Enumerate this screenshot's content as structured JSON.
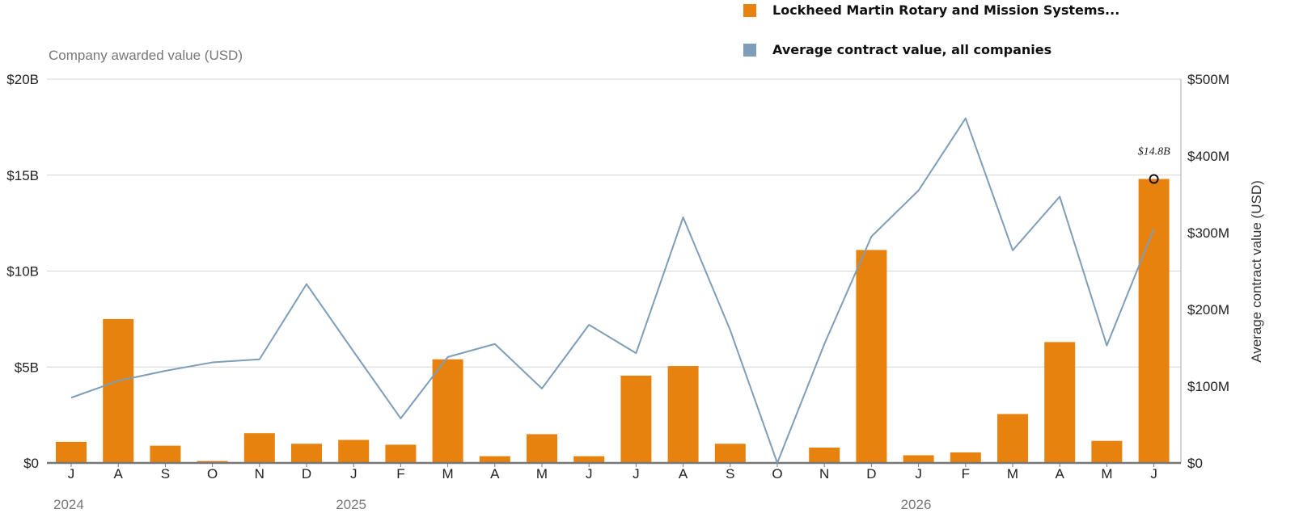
{
  "chart_data": {
    "type": "bar",
    "categories": [
      "J",
      "A",
      "S",
      "O",
      "N",
      "D",
      "J",
      "F",
      "M",
      "A",
      "M",
      "J",
      "J",
      "A",
      "S",
      "O",
      "N",
      "D",
      "J",
      "F",
      "M",
      "A",
      "M",
      "J"
    ],
    "years": [
      {
        "label": "2024",
        "index": 0
      },
      {
        "label": "2025",
        "index": 6
      },
      {
        "label": "2026",
        "index": 18
      }
    ],
    "series": [
      {
        "name": "Lockheed Martin Rotary and Mission Systems...",
        "type": "bar",
        "axis": "left",
        "color": "#E8820E",
        "values": [
          1.1,
          7.5,
          0.9,
          0.1,
          1.55,
          1.0,
          1.2,
          0.95,
          5.4,
          0.35,
          1.5,
          0.35,
          4.55,
          5.05,
          1.0,
          0.0,
          0.8,
          11.1,
          0.4,
          0.55,
          2.55,
          6.3,
          1.15,
          14.8
        ]
      },
      {
        "name": "Average contract value, all companies",
        "type": "line",
        "axis": "right",
        "color": "#7E9DB8",
        "values": [
          85,
          107,
          120,
          131,
          135,
          233,
          145,
          58,
          138,
          155,
          97,
          180,
          143,
          320,
          173,
          0,
          155,
          295,
          355,
          449,
          277,
          347,
          153,
          305
        ]
      }
    ],
    "y_left": {
      "label": "Company awarded value (USD)",
      "range": [
        0,
        20
      ],
      "unit": "billions",
      "ticks": [
        {
          "value": 0,
          "label": "$0"
        },
        {
          "value": 5,
          "label": "$5B"
        },
        {
          "value": 10,
          "label": "$10B"
        },
        {
          "value": 15,
          "label": "$15B"
        },
        {
          "value": 20,
          "label": "$20B"
        }
      ]
    },
    "y_right": {
      "label": "Average contract value (USD)",
      "range": [
        0,
        500
      ],
      "unit": "millions",
      "ticks": [
        {
          "value": 0,
          "label": "$0"
        },
        {
          "value": 100,
          "label": "$100M"
        },
        {
          "value": 200,
          "label": "$200M"
        },
        {
          "value": 300,
          "label": "$300M"
        },
        {
          "value": 400,
          "label": "$400M"
        },
        {
          "value": 500,
          "label": "$500M"
        }
      ]
    },
    "annotation": {
      "index": 23,
      "value": 14.8,
      "label": "$14.8B"
    },
    "grid": true,
    "legend_position": "top-right"
  }
}
